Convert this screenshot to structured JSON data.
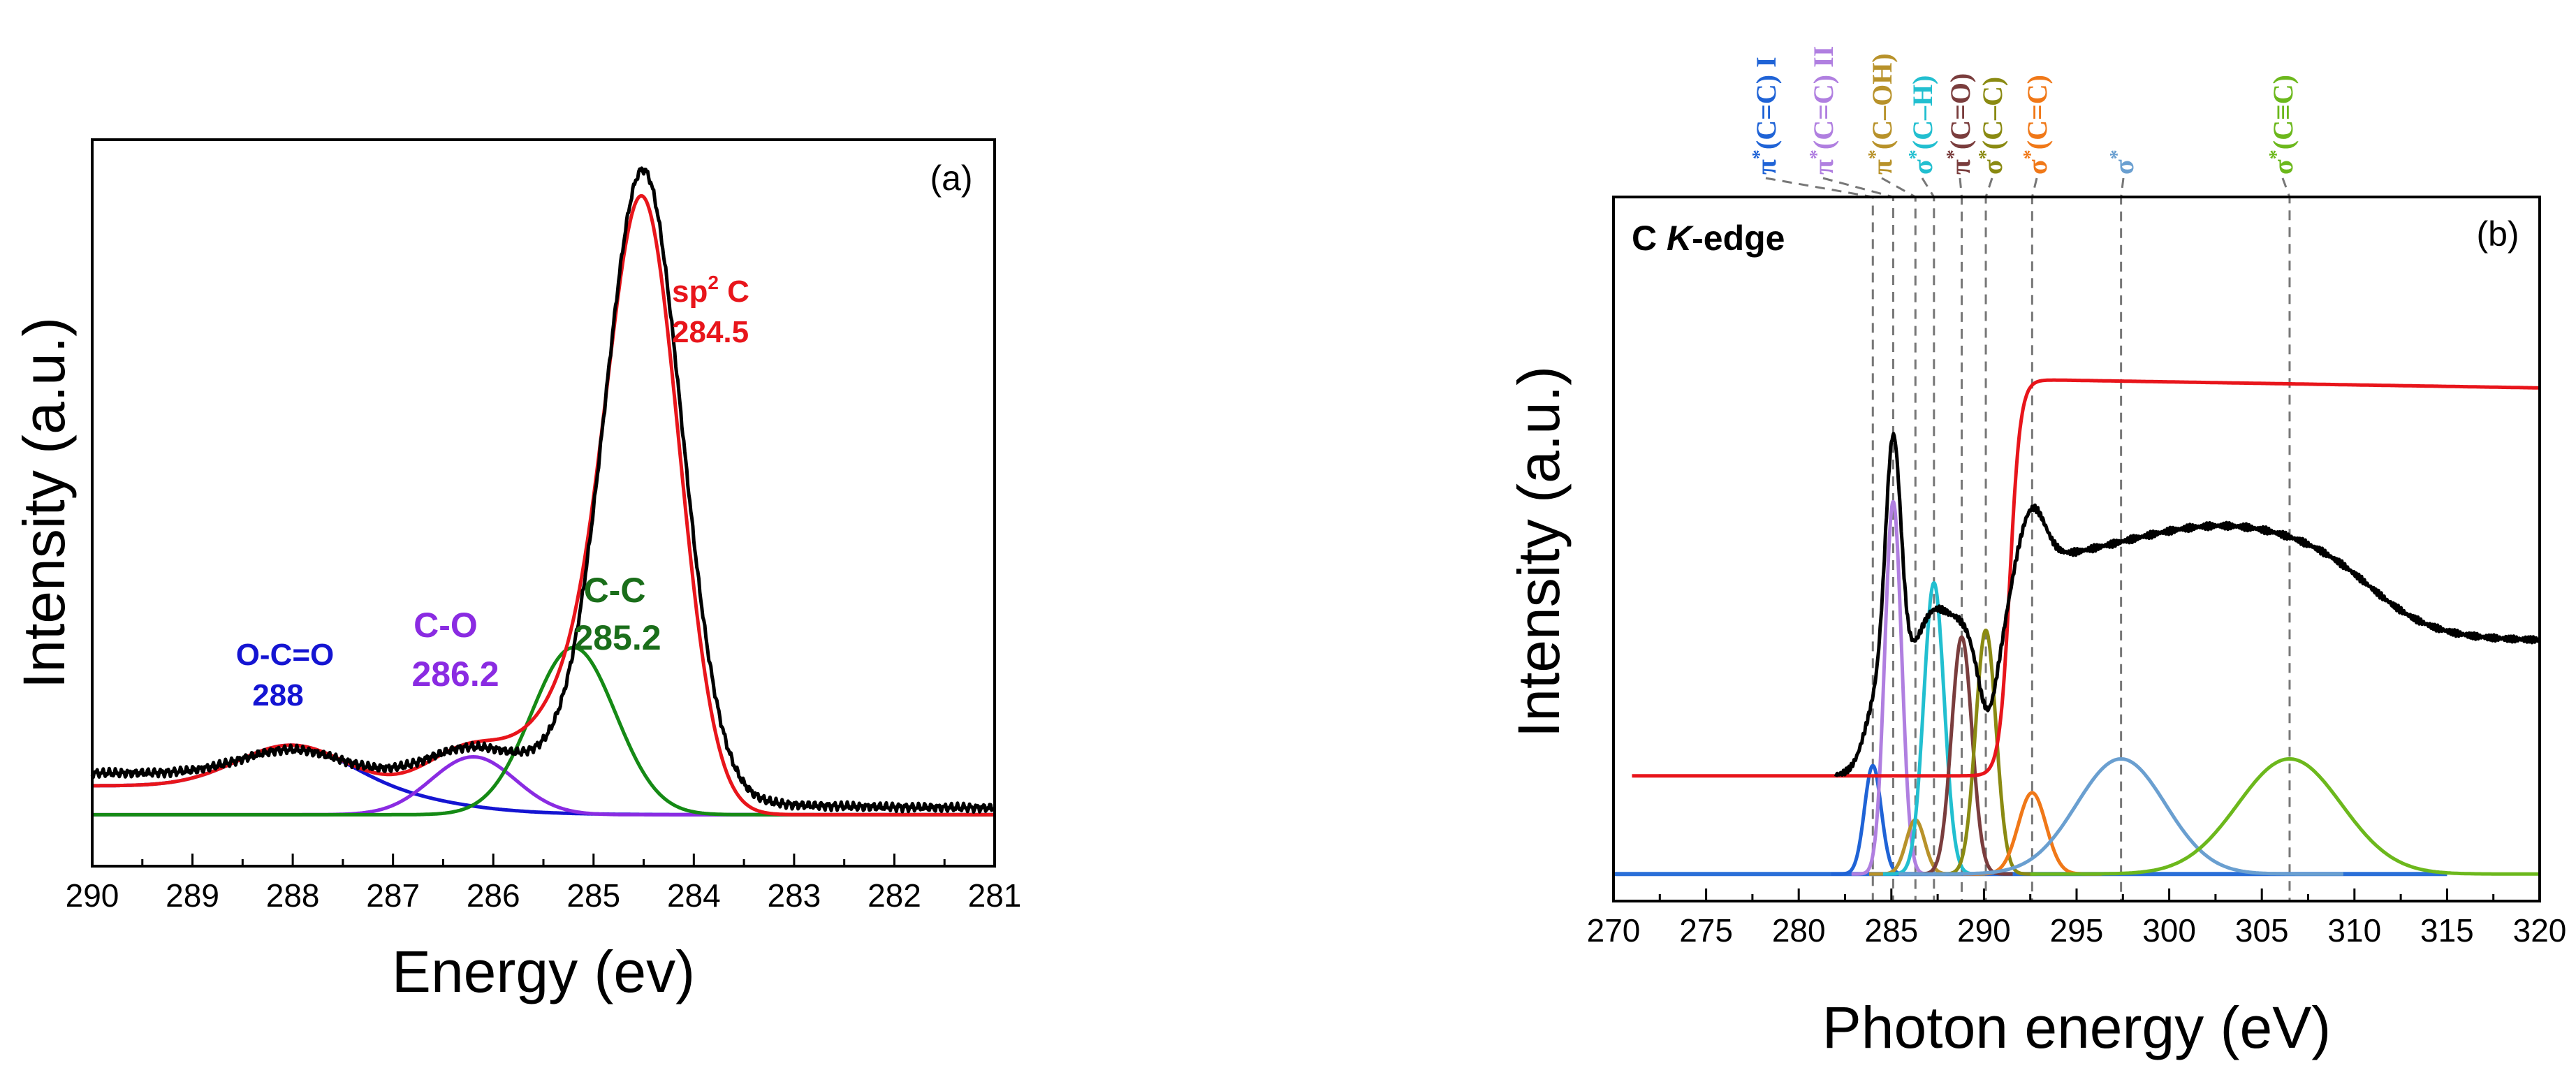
{
  "chart_data": [
    {
      "type": "line",
      "panel_label": "(a)",
      "xlabel": "Energy (ev)",
      "ylabel": "Intensity (a.u.)",
      "xlim": [
        290,
        281
      ],
      "x_reversed": true,
      "xticks": [
        290,
        289,
        288,
        287,
        286,
        285,
        284,
        283,
        282,
        281
      ],
      "ylim": [
        -0.08,
        1.05
      ],
      "series": [
        {
          "name": "experimental",
          "color": "#000000",
          "peak_center": 284.5,
          "peak_height": 0.99
        },
        {
          "name": "sp2 C",
          "color": "#e8151b",
          "center": 284.5,
          "height": 0.97
        },
        {
          "name": "C-C",
          "color": "#158a15",
          "center": 285.2,
          "height": 0.26
        },
        {
          "name": "C-O",
          "color": "#8a2be2",
          "center": 286.2,
          "height": 0.09
        },
        {
          "name": "O-C=O",
          "color": "#1414d2",
          "center": 288.0,
          "height": 0.065
        }
      ],
      "annotations": [
        {
          "lines": [
            "O-C=O",
            "288"
          ],
          "color": "#1414d2"
        },
        {
          "lines": [
            "C-O",
            "286.2"
          ],
          "color": "#8a2be2"
        },
        {
          "lines": [
            "C-C",
            "285.2"
          ],
          "color": "#1a6e1a"
        },
        {
          "lines": [
            "sp",
            "2",
            " C",
            "284.5"
          ],
          "color": "#e8151b"
        }
      ]
    },
    {
      "type": "line",
      "panel_label": "(b)",
      "title": "C K-edge",
      "title_main": "C ",
      "title_italic": "K",
      "title_rest": "-edge",
      "xlabel": "Photon energy (eV)",
      "ylabel": "Intensity (a.u.)",
      "xlim": [
        270,
        320
      ],
      "xticks": [
        270,
        275,
        280,
        285,
        290,
        295,
        300,
        305,
        310,
        315,
        320
      ],
      "ylim": [
        -0.04,
        1.0
      ],
      "series": [
        {
          "name": "experimental",
          "color": "#000000"
        },
        {
          "name": "step",
          "color": "#e8151b",
          "edge": 291.5
        },
        {
          "name": "baseline",
          "color": "#2a6fd8"
        }
      ],
      "peaks": [
        {
          "label": "π*(C=C) I",
          "prefix": "π",
          "suffix": "(C=C) I",
          "center": 284.0,
          "height": 0.16,
          "color": "#1f63d6"
        },
        {
          "label": "π*(C=C) II",
          "prefix": "π",
          "suffix": "(C=C) II",
          "center": 285.1,
          "height": 0.55,
          "color": "#b07fe0"
        },
        {
          "label": "π*(C-OH)",
          "prefix": "π",
          "suffix": "(C–OH)",
          "center": 286.3,
          "height": 0.08,
          "color": "#b8922a"
        },
        {
          "label": "σ*(C-H)",
          "prefix": "σ",
          "suffix": "(C–H)",
          "center": 287.3,
          "height": 0.43,
          "color": "#22bfd0"
        },
        {
          "label": "π*(C=O)",
          "prefix": "π",
          "suffix": "(C=O)",
          "center": 288.8,
          "height": 0.35,
          "color": "#7a3d3d"
        },
        {
          "label": "σ*(C-C)",
          "prefix": "σ",
          "suffix": "(C–C)",
          "center": 290.1,
          "height": 0.36,
          "color": "#8a8a12"
        },
        {
          "label": "σ*(C=C)",
          "prefix": "σ",
          "suffix": "(C=C)",
          "center": 292.6,
          "height": 0.12,
          "color": "#f07818"
        },
        {
          "label": "σ*",
          "prefix": "σ",
          "suffix": "",
          "center": 297.4,
          "height": 0.17,
          "color": "#6a9fd0"
        },
        {
          "label": "σ*(C≡C)",
          "prefix": "σ",
          "suffix": "(C≡C)",
          "center": 306.5,
          "height": 0.17,
          "color": "#6cb81c"
        }
      ]
    }
  ]
}
